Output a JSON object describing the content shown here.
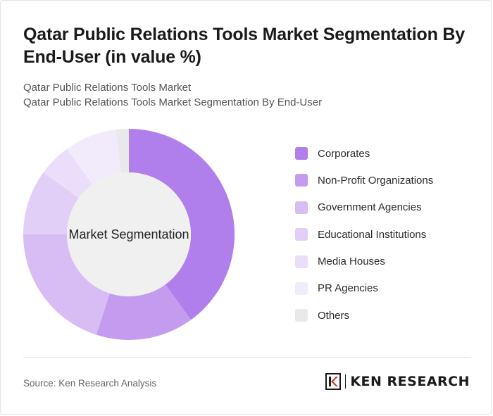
{
  "header": {
    "title": "Qatar Public Relations Tools Market Segmentation By End-User (in value %)",
    "subtitle_line1": "Qatar Public Relations Tools Market",
    "subtitle_line2": "Qatar Public Relations Tools Market Segmentation By End-User"
  },
  "chart_data": {
    "type": "pie",
    "donut": true,
    "center_label": "Market Segmentation",
    "legend_position": "right",
    "categories": [
      "Corporates",
      "Non-Profit Organizations",
      "Government Agencies",
      "Educational Institutions",
      "Media Houses",
      "PR Agencies",
      "Others"
    ],
    "values": [
      40,
      15,
      20,
      10,
      5,
      8,
      2
    ],
    "colors": [
      "#b07fec",
      "#c49cef",
      "#d7bdf4",
      "#e2cff7",
      "#ebdefa",
      "#f1ebfb",
      "#e9e9e9"
    ]
  },
  "footer": {
    "source": "Source: Ken Research Analysis",
    "logo_text": "KEN RESEARCH",
    "logo_icon": "ken-research-k-icon"
  }
}
